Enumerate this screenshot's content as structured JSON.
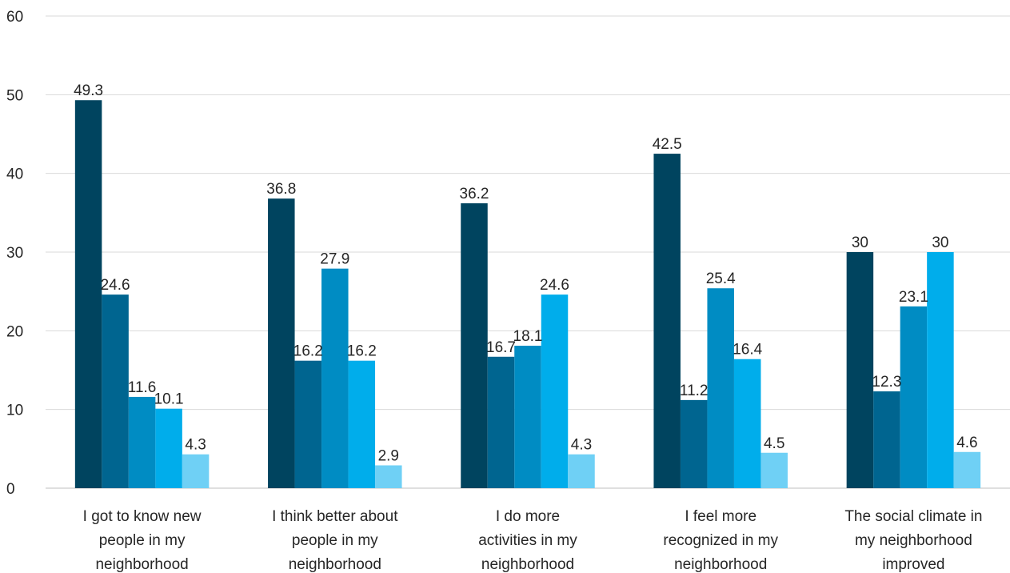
{
  "chart_data": {
    "type": "bar",
    "categories": [
      [
        "I got to know new",
        "people in my",
        "neighborhood"
      ],
      [
        "I think better about",
        "people in my",
        "neighborhood"
      ],
      [
        "I do more",
        "activities in my",
        "neighborhood"
      ],
      [
        "I feel more",
        "recognized in my",
        "neighborhood"
      ],
      [
        "The social climate in",
        "my neighborhood",
        "improved"
      ]
    ],
    "series": [
      {
        "values": [
          49.3,
          36.8,
          36.2,
          42.5,
          30
        ],
        "color": "#00445f"
      },
      {
        "values": [
          24.6,
          16.2,
          16.7,
          11.2,
          12.3
        ],
        "color": "#006590"
      },
      {
        "values": [
          11.6,
          27.9,
          18.1,
          25.4,
          23.1
        ],
        "color": "#008cc3"
      },
      {
        "values": [
          10.1,
          16.2,
          24.6,
          16.4,
          30
        ],
        "color": "#00adeb"
      },
      {
        "values": [
          4.3,
          2.9,
          4.3,
          4.5,
          4.6
        ],
        "color": "#6fd0f5"
      }
    ],
    "data_labels": [
      [
        "49.3",
        "24.6",
        "11.6",
        "10.1",
        "4.3"
      ],
      [
        "36.8",
        "16.2",
        "27.9",
        "16.2",
        "2.9"
      ],
      [
        "36.2",
        "16.7",
        "18.1",
        "24.6",
        "4.3"
      ],
      [
        "42.5",
        "11.2",
        "25.4",
        "16.4",
        "4.5"
      ],
      [
        "30",
        "12.3",
        "23.1",
        "30",
        "4.6"
      ]
    ],
    "yticks": [
      "0",
      "10",
      "20",
      "30",
      "40",
      "50",
      "60"
    ],
    "ylim": [
      0,
      60
    ],
    "grid": true,
    "legend": "none",
    "title": "",
    "xlabel": "",
    "ylabel": ""
  }
}
